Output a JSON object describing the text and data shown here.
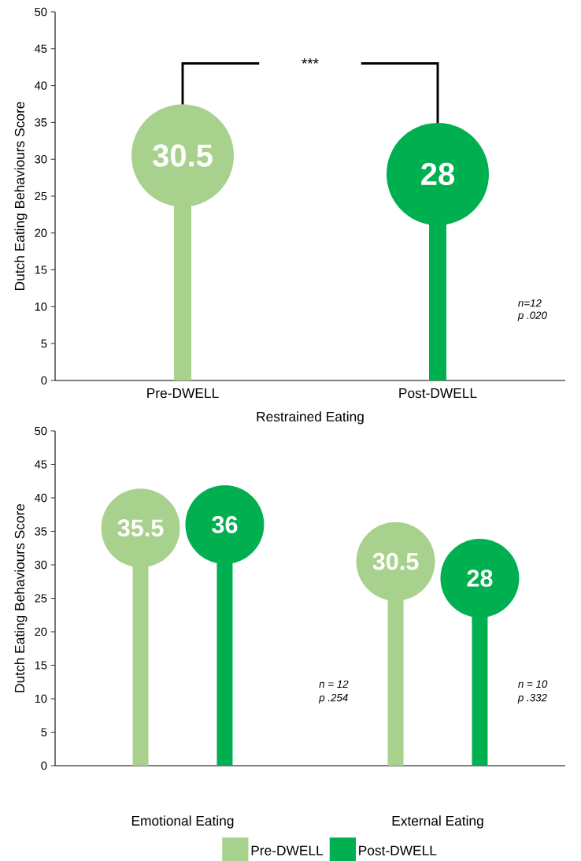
{
  "chart_data": [
    {
      "type": "lollipop",
      "categories": [
        "Pre-DWELL",
        "Post-DWELL"
      ],
      "values": [
        30.5,
        28
      ],
      "colors": [
        "#a9d18e",
        "#00b050"
      ],
      "xlabel": "Restrained Eating",
      "ylabel": "Dutch Eating Behaviours Score",
      "ylim": [
        0,
        50
      ],
      "yticks": [
        0,
        5,
        10,
        15,
        20,
        25,
        30,
        35,
        40,
        45,
        50
      ],
      "data_labels": true,
      "annotations": [
        "***",
        "n=12",
        "p .020"
      ]
    },
    {
      "type": "lollipop",
      "categories": [
        "Emotional Eating",
        "External Eating"
      ],
      "ylabel": "Dutch Eating Behaviours Score",
      "ylim": [
        0,
        50
      ],
      "yticks": [
        0,
        5,
        10,
        15,
        20,
        25,
        30,
        35,
        40,
        45,
        50
      ],
      "data_labels": true,
      "legend": "bottom",
      "series": [
        {
          "name": "Pre-DWELL",
          "color": "#a9d18e",
          "values": [
            35.5,
            30.5
          ]
        },
        {
          "name": "Post-DWELL",
          "color": "#00b050",
          "values": [
            36,
            28
          ]
        }
      ],
      "annotations": [
        "n = 12",
        "p .254",
        "n = 10",
        "p .332"
      ]
    }
  ]
}
